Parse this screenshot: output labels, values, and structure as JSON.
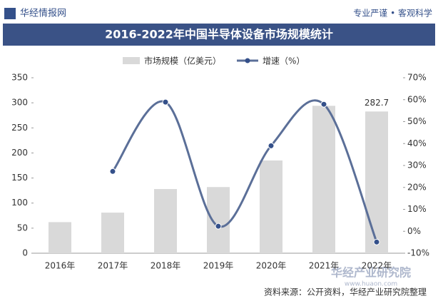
{
  "header": {
    "brand": "华经情报网",
    "slogan": "专业严谨 • 客观科学"
  },
  "chart_data": {
    "type": "bar-line",
    "title": "2016-2022年中国半导体设备市场规模统计",
    "categories": [
      "2016年",
      "2017年",
      "2018年",
      "2019年",
      "2020年",
      "2021年",
      "2022年"
    ],
    "series": [
      {
        "name": "市场规模（亿美元）",
        "color": "#d9d9d9",
        "type": "bar",
        "values": [
          62,
          81,
          128,
          132,
          185,
          294,
          282.7
        ],
        "value_labels": [
          null,
          null,
          null,
          null,
          null,
          null,
          "282.7"
        ]
      },
      {
        "name": "增速（%）",
        "color": "#5b6f98",
        "marker_color": "#34508a",
        "type": "line",
        "axis": "y2",
        "values": [
          null,
          27.3,
          58.9,
          2.3,
          39,
          57.9,
          -4.9
        ]
      }
    ],
    "ylim": [
      0,
      350
    ],
    "yticks": [
      0,
      50,
      100,
      150,
      200,
      250,
      300,
      350
    ],
    "y2lim": [
      -10,
      70
    ],
    "y2ticks": [
      {
        "value": -10,
        "label": "-10%"
      },
      {
        "value": 0,
        "label": "0%"
      },
      {
        "value": 10,
        "label": "10%"
      },
      {
        "value": 20,
        "label": "20%"
      },
      {
        "value": 30,
        "label": "30%"
      },
      {
        "value": 40,
        "label": "40%"
      },
      {
        "value": 50,
        "label": "50%"
      },
      {
        "value": 60,
        "label": "60%"
      },
      {
        "value": 70,
        "label": "70%"
      }
    ],
    "source": "资料来源：公开资料，华经产业研究院整理"
  },
  "footer": {
    "logo": "华经产业研究院",
    "url": "www.huaon.com"
  }
}
